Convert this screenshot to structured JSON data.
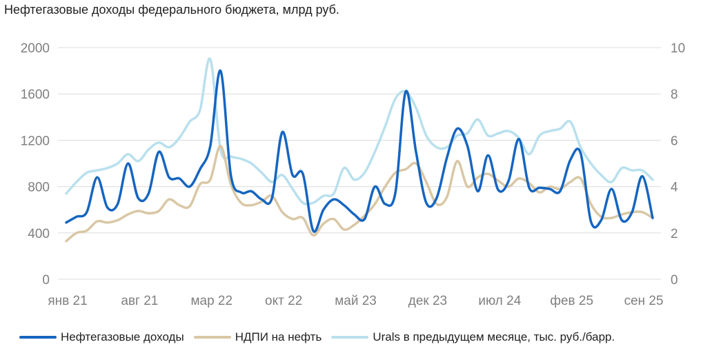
{
  "title": "Нефтегазовые доходы федерального бюджета, млрд руб.",
  "colors": {
    "revenue": "#1565c0",
    "ndpi": "#d9c7a5",
    "urals": "#b9e0ed",
    "grid": "#dcdcdc",
    "tick": "#7f7f7f"
  },
  "chart_data": {
    "type": "line",
    "x": [
      "янв 21",
      "фев 21",
      "мар 21",
      "апр 21",
      "май 21",
      "июн 21",
      "июл 21",
      "авг 21",
      "сен 21",
      "окт 21",
      "ноя 21",
      "дек 21",
      "янв 22",
      "фев 22",
      "мар 22",
      "апр 22",
      "май 22",
      "июн 22",
      "июл 22",
      "авг 22",
      "сен 22",
      "окт 22",
      "ноя 22",
      "дек 22",
      "янв 23",
      "фев 23",
      "мар 23",
      "апр 23",
      "май 23",
      "июн 23",
      "июл 23",
      "авг 23",
      "сен 23",
      "окт 23",
      "ноя 23",
      "дек 23",
      "янв 24",
      "фев 24",
      "мар 24",
      "апр 24",
      "май 24",
      "июн 24",
      "июл 24",
      "авг 24",
      "сен 24",
      "окт 24",
      "ноя 24",
      "дек 24",
      "янв 25",
      "фев 25",
      "мар 25",
      "апр 25",
      "май 25",
      "июн 25",
      "июл 25",
      "авг 25",
      "сен 25",
      "окт 25"
    ],
    "x_tick_labels": [
      "янв 21",
      "авг 21",
      "мар 22",
      "окт 22",
      "май 23",
      "дек 23",
      "июл 24",
      "фев 25",
      "сен 25"
    ],
    "y_left": {
      "range": [
        0,
        2000
      ],
      "ticks": [
        "0",
        "400",
        "800",
        "1200",
        "1600",
        "2000"
      ]
    },
    "y_right": {
      "range": [
        0,
        10
      ],
      "ticks": [
        "0",
        "2",
        "4",
        "6",
        "8",
        "10"
      ]
    },
    "grid": true,
    "legend_position": "bottom",
    "series": [
      {
        "name": "Нефтегазовые доходы",
        "axis": "left",
        "values": [
          490,
          540,
          580,
          880,
          620,
          650,
          1000,
          700,
          740,
          1100,
          880,
          870,
          800,
          950,
          1150,
          1800,
          900,
          750,
          760,
          690,
          700,
          1270,
          900,
          910,
          420,
          600,
          690,
          640,
          560,
          520,
          800,
          650,
          750,
          1620,
          1100,
          660,
          700,
          1050,
          1300,
          1150,
          760,
          1070,
          770,
          850,
          1210,
          790,
          790,
          780,
          760,
          1030,
          1090,
          500,
          510,
          780,
          510,
          580,
          890,
          530
        ]
      },
      {
        "name": "НДПИ на нефть",
        "axis": "left",
        "values": [
          330,
          400,
          420,
          500,
          490,
          510,
          560,
          590,
          570,
          590,
          690,
          640,
          630,
          820,
          860,
          1150,
          820,
          660,
          640,
          670,
          720,
          580,
          520,
          530,
          380,
          480,
          520,
          430,
          470,
          550,
          650,
          800,
          920,
          950,
          1000,
          840,
          650,
          710,
          1020,
          800,
          880,
          910,
          850,
          800,
          870,
          830,
          750,
          800,
          780,
          840,
          870,
          650,
          540,
          530,
          560,
          580,
          580,
          530
        ]
      },
      {
        "name": "Urals в предыдущем месяце, тыс. руб./барр.",
        "axis": "right",
        "values": [
          3.7,
          4.2,
          4.6,
          4.7,
          4.8,
          5.0,
          5.4,
          5.1,
          5.6,
          5.9,
          5.7,
          6.1,
          6.8,
          7.3,
          9.5,
          5.6,
          5.3,
          5.2,
          5.0,
          4.6,
          4.2,
          4.5,
          3.9,
          3.3,
          3.3,
          3.6,
          3.7,
          4.8,
          4.3,
          4.6,
          5.5,
          6.6,
          7.8,
          8.1,
          7.4,
          6.2,
          5.7,
          5.7,
          6.2,
          6.3,
          6.9,
          6.2,
          6.3,
          6.4,
          6.1,
          5.4,
          6.2,
          6.4,
          6.5,
          6.8,
          5.7,
          5.0,
          4.5,
          4.2,
          4.8,
          4.7,
          4.7,
          4.3
        ]
      }
    ]
  }
}
